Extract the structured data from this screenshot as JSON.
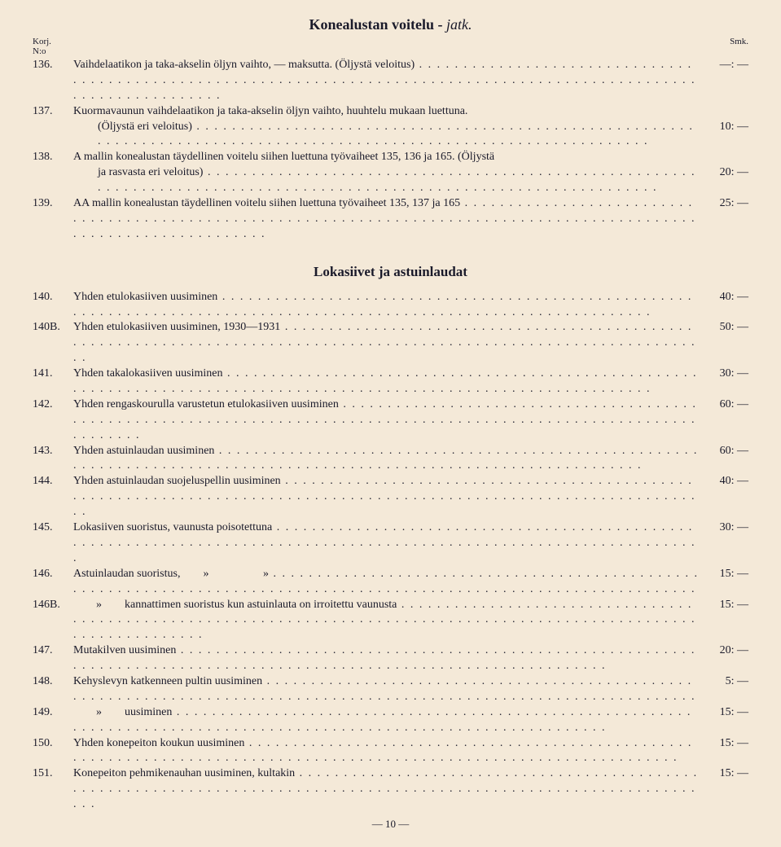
{
  "title_main": "Konealustan voitelu - ",
  "title_suffix": "jatk.",
  "header_left": "Korj.\nN:o",
  "header_right": "Smk.",
  "section1": [
    {
      "n": "136.",
      "d": "Vaihdelaatikon ja taka-akselin öljyn vaihto, — maksutta. (Öljystä veloitus)",
      "p": "—: —"
    },
    {
      "n": "137.",
      "d": "Kuormavaunun vaihdelaatikon ja taka-akselin öljyn vaihto, huuhtelu mukaan luettuna.",
      "p": "",
      "nolead": true
    },
    {
      "n": "",
      "d": "(Öljystä eri veloitus)",
      "p": "10: —",
      "indent": true
    },
    {
      "n": "138.",
      "d": "A mallin konealustan täydellinen voitelu siihen luettuna työvaiheet 135, 136 ja 165. (Öljystä",
      "p": "",
      "nolead": true
    },
    {
      "n": "",
      "d": "ja rasvasta eri veloitus)",
      "p": "20: —",
      "indent": true
    },
    {
      "n": "139.",
      "d": "AA mallin konealustan täydellinen voitelu siihen luettuna työvaiheet 135, 137 ja 165",
      "p": "25: —"
    }
  ],
  "section2_title": "Lokasiivet ja astuinlaudat",
  "section2": [
    {
      "n": "140.",
      "d": "Yhden etulokasiiven uusiminen",
      "p": "40: —"
    },
    {
      "n": "140B.",
      "d": "Yhden etulokasiiven uusiminen, 1930—1931",
      "p": "50: —"
    },
    {
      "n": "141.",
      "d": "Yhden takalokasiiven uusiminen",
      "p": "30: —"
    },
    {
      "n": "142.",
      "d": "Yhden rengaskourulla varustetun etulokasiiven uusiminen",
      "p": "60: —"
    },
    {
      "n": "143.",
      "d": "Yhden astuinlaudan uusiminen",
      "p": "60: —"
    },
    {
      "n": "144.",
      "d": "Yhden astuinlaudan suojeluspellin uusiminen",
      "p": "40: —"
    },
    {
      "n": "145.",
      "d": "Lokasiiven suoristus, vaunusta poisotettuna",
      "p": "30: —"
    },
    {
      "n": "146.",
      "d": "Astuinlaudan suoristus,        »                   »",
      "p": "15: —"
    },
    {
      "n": "146B.",
      "d": "        »        kannattimen suoristus kun astuinlauta on irroitettu vaunusta",
      "p": "15: —"
    },
    {
      "n": "147.",
      "d": "Mutakilven uusiminen",
      "p": "20: —"
    },
    {
      "n": "148.",
      "d": "Kehyslevyn katkenneen pultin uusiminen",
      "p": "5: —"
    },
    {
      "n": "149.",
      "d": "        »        uusiminen",
      "p": "15: —"
    },
    {
      "n": "150.",
      "d": "Yhden konepeiton koukun uusiminen",
      "p": "15: —"
    },
    {
      "n": "151.",
      "d": "Konepeiton pehmikenauhan uusiminen, kultakin",
      "p": "15: —"
    }
  ],
  "footer": "— 10 —"
}
